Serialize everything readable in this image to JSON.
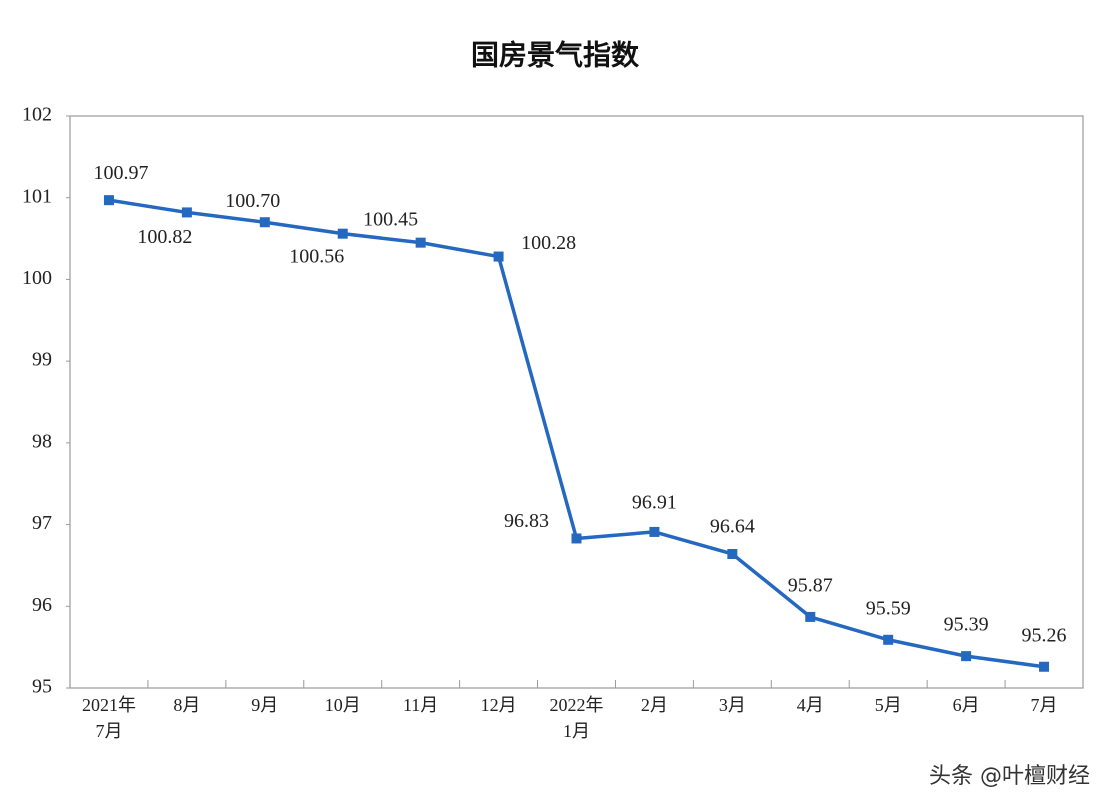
{
  "chart_data": {
    "type": "line",
    "title": "国房景气指数",
    "categories": [
      "2021年\n7月",
      "8月",
      "9月",
      "10月",
      "11月",
      "12月",
      "2022年\n1月",
      "2月",
      "3月",
      "4月",
      "5月",
      "6月",
      "7月"
    ],
    "series": [
      {
        "name": "国房景气指数",
        "color": "#2468c0",
        "values": [
          100.97,
          100.82,
          100.7,
          100.56,
          100.45,
          100.28,
          96.83,
          96.91,
          96.64,
          95.87,
          95.59,
          95.39,
          95.26
        ],
        "value_labels": [
          "100.97",
          "100.82",
          "100.70",
          "100.56",
          "100.45",
          "100.28",
          "96.83",
          "96.91",
          "96.64",
          "95.87",
          "95.59",
          "95.39",
          "95.26"
        ]
      }
    ],
    "ylim": [
      95,
      102
    ],
    "yticks": [
      95,
      96,
      97,
      98,
      99,
      100,
      101,
      102
    ],
    "grid": false
  },
  "watermark": "头条 @叶檀财经"
}
